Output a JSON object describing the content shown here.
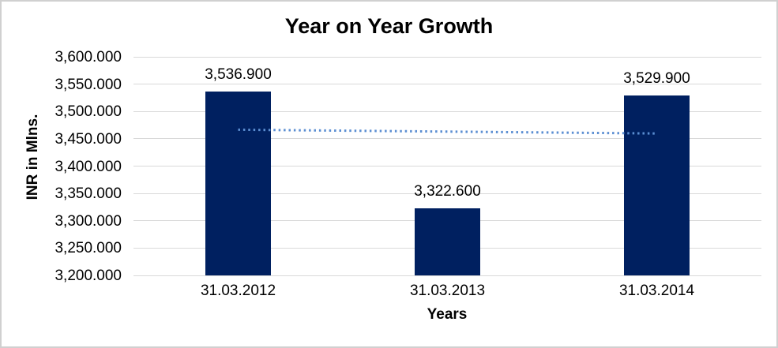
{
  "window": {
    "background_color": "#ffffff",
    "border_color": "#d0d0d0"
  },
  "chart_data": {
    "type": "bar",
    "title": "Year on Year Growth",
    "xlabel": "Years",
    "ylabel": "INR in Mlns.",
    "categories": [
      "31.03.2012",
      "31.03.2013",
      "31.03.2014"
    ],
    "series": [
      {
        "name": "INR in Mlns.",
        "values": [
          3536.9,
          3322.6,
          3529.9
        ]
      }
    ],
    "value_labels": [
      "3,536.900",
      "3,322.600",
      "3,529.900"
    ],
    "ytick_labels": [
      "3,600.000",
      "3,550.000",
      "3,500.000",
      "3,450.000",
      "3,400.000",
      "3,350.000",
      "3,300.000",
      "3,250.000",
      "3,200.000"
    ],
    "ylim": [
      3200,
      3600
    ],
    "grid": "horizontal",
    "legend": "none",
    "bar_color": "#002060",
    "gridline_color": "#d9d9d9",
    "text_color": "#000000",
    "trendline": {
      "type": "linear",
      "style": "dotted",
      "color": "#5b8ed2",
      "start_value": 3466.6,
      "end_value": 3459.7
    }
  }
}
